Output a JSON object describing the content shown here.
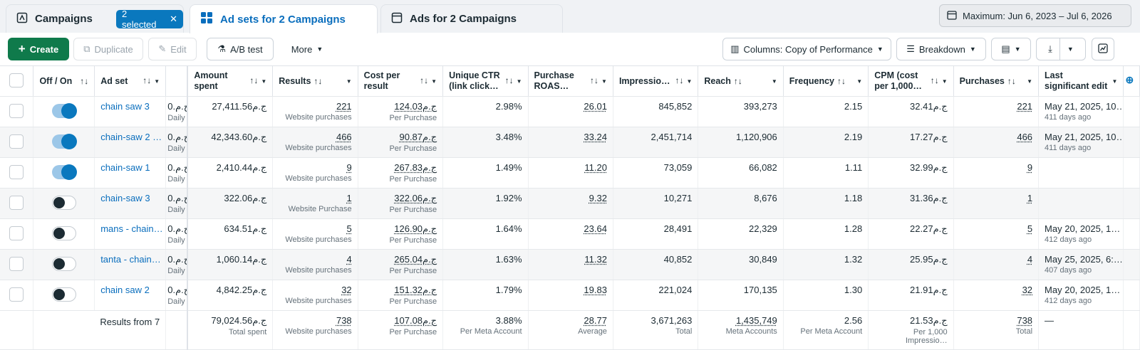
{
  "tabs": {
    "campaigns": "Campaigns",
    "selected_chip": "2 selected",
    "adsets": "Ad sets for 2 Campaigns",
    "ads": "Ads for 2 Campaigns"
  },
  "date_range": "Maximum: Jun 6, 2023 – Jul 6, 2026",
  "toolbar": {
    "create": "Create",
    "duplicate": "Duplicate",
    "edit": "Edit",
    "ab_test": "A/B test",
    "more": "More",
    "columns": "Columns: Copy of Performance",
    "breakdown": "Breakdown"
  },
  "columns": {
    "offon": "Off / On",
    "adset": "Ad set",
    "amount": "Amount spent",
    "results": "Results",
    "cpr": "Cost per result",
    "uctr": "Unique CTR (link click…",
    "roas": "Purchase ROAS…",
    "impr": "Impressio…",
    "reach": "Reach",
    "freq": "Frequency",
    "cpm": "CPM (cost per 1,000…",
    "purch": "Purchases",
    "last": "Last significant edit"
  },
  "rows": [
    {
      "name": "chain saw 3",
      "on": true,
      "budget": "0.ج.م",
      "budget_sub": "Daily",
      "amount": "27,411.56ج.م",
      "results": "221",
      "results_sub": "Website purchases",
      "cpr": "124.03ج.م",
      "cpr_sub": "Per Purchase",
      "uctr": "2.98%",
      "roas": "26.01",
      "impr": "845,852",
      "reach": "393,273",
      "freq": "2.15",
      "cpm": "32.41ج.م",
      "purch": "221",
      "last": "May 21, 2025, 10…",
      "last_sub": "411 days ago"
    },
    {
      "name": "chain-saw 2 …",
      "on": true,
      "budget": "0.ج.م",
      "budget_sub": "Daily",
      "amount": "42,343.60ج.م",
      "results": "466",
      "results_sub": "Website purchases",
      "cpr": "90.87ج.م",
      "cpr_sub": "Per Purchase",
      "uctr": "3.48%",
      "roas": "33.24",
      "impr": "2,451,714",
      "reach": "1,120,906",
      "freq": "2.19",
      "cpm": "17.27ج.م",
      "purch": "466",
      "last": "May 21, 2025, 10…",
      "last_sub": "411 days ago"
    },
    {
      "name": "chain-saw 1",
      "on": true,
      "budget": "0.ج.م",
      "budget_sub": "Daily",
      "amount": "2,410.44ج.م",
      "results": "9",
      "results_sub": "Website purchases",
      "cpr": "267.83ج.م",
      "cpr_sub": "Per Purchase",
      "uctr": "1.49%",
      "roas": "11.20",
      "impr": "73,059",
      "reach": "66,082",
      "freq": "1.11",
      "cpm": "32.99ج.م",
      "purch": "9",
      "last": "",
      "last_sub": ""
    },
    {
      "name": "chain-saw 3",
      "on": false,
      "budget": "0.ج.م",
      "budget_sub": "Daily",
      "amount": "322.06ج.م",
      "results": "1",
      "results_sub": "Website Purchase",
      "cpr": "322.06ج.م",
      "cpr_sub": "Per Purchase",
      "uctr": "1.92%",
      "roas": "9.32",
      "impr": "10,271",
      "reach": "8,676",
      "freq": "1.18",
      "cpm": "31.36ج.م",
      "purch": "1",
      "last": "",
      "last_sub": ""
    },
    {
      "name": "mans - chain…",
      "on": false,
      "budget": "0.ج.م",
      "budget_sub": "Daily",
      "amount": "634.51ج.م",
      "results": "5",
      "results_sub": "Website purchases",
      "cpr": "126.90ج.م",
      "cpr_sub": "Per Purchase",
      "uctr": "1.64%",
      "roas": "23.64",
      "impr": "28,491",
      "reach": "22,329",
      "freq": "1.28",
      "cpm": "22.27ج.م",
      "purch": "5",
      "last": "May 20, 2025, 1…",
      "last_sub": "412 days ago"
    },
    {
      "name": "tanta - chain…",
      "on": false,
      "budget": "0.ج.م",
      "budget_sub": "Daily",
      "amount": "1,060.14ج.م",
      "results": "4",
      "results_sub": "Website purchases",
      "cpr": "265.04ج.م",
      "cpr_sub": "Per Purchase",
      "uctr": "1.63%",
      "roas": "11.32",
      "impr": "40,852",
      "reach": "30,849",
      "freq": "1.32",
      "cpm": "25.95ج.م",
      "purch": "4",
      "last": "May 25, 2025, 6:…",
      "last_sub": "407 days ago"
    },
    {
      "name": "chain saw 2",
      "on": false,
      "budget": "0.ج.م",
      "budget_sub": "Daily",
      "amount": "4,842.25ج.م",
      "results": "32",
      "results_sub": "Website purchases",
      "cpr": "151.32ج.م",
      "cpr_sub": "Per Purchase",
      "uctr": "1.79%",
      "roas": "19.83",
      "impr": "221,024",
      "reach": "170,135",
      "freq": "1.30",
      "cpm": "21.91ج.م",
      "purch": "32",
      "last": "May 20, 2025, 1…",
      "last_sub": "412 days ago"
    }
  ],
  "totals": {
    "label": "Results from 7",
    "amount": "79,024.56ج.م",
    "amount_sub": "Total spent",
    "results": "738",
    "results_sub": "Website purchases",
    "cpr": "107.08ج.م",
    "cpr_sub": "Per Purchase",
    "uctr": "3.88%",
    "uctr_sub": "Per Meta Account",
    "roas": "28.77",
    "roas_sub": "Average",
    "impr": "3,671,263",
    "impr_sub": "Total",
    "reach": "1,435,749",
    "reach_sub": "Meta Accounts",
    "freq": "2.56",
    "freq_sub": "Per Meta Account",
    "cpm": "21.53ج.م",
    "cpm_sub": "Per 1,000 Impressio…",
    "purch": "738",
    "purch_sub": "Total",
    "last": "—"
  }
}
